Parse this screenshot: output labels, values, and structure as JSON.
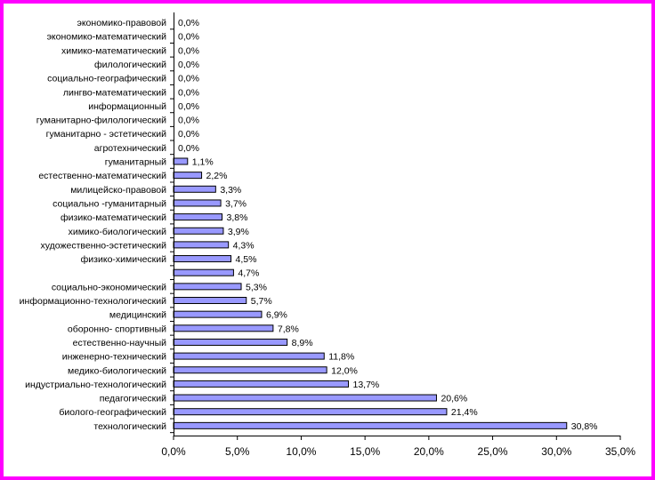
{
  "chart_data": {
    "type": "bar",
    "orientation": "horizontal",
    "bar_color": "#9999ff",
    "bar_edge_color": "#000000",
    "frame_color": "#ff00ff",
    "grid": false,
    "legend": "none",
    "xlim": [
      0,
      35
    ],
    "x_ticks": [
      "0,0%",
      "5,0%",
      "10,0%",
      "15,0%",
      "20,0%",
      "25,0%",
      "30,0%",
      "35,0%"
    ],
    "categories": [
      "экономико-правовой",
      "экономико-математический",
      "химико-математический",
      "филологический",
      "социально-географический",
      "лингво-математический",
      "информационный",
      "гуманитарно-филологический",
      "гуманитарно - эстетический",
      "агротехнический",
      "гуманитарный",
      "естественно-математический",
      "милицейско-правовой",
      "социально -гуманитарный",
      "физико-математический",
      "химико-биологический",
      "художественно-эстетический",
      "физико-химический",
      "",
      "социально-экономический",
      "информационно-технологический",
      "медицинский",
      "оборонно- спортивный",
      "естественно-научный",
      "инженерно-технический",
      "медико-биологический",
      "индустриально-технологический",
      "педагогический",
      "биолого-географический",
      "технологический"
    ],
    "values": [
      0,
      0,
      0,
      0,
      0,
      0,
      0,
      0,
      0,
      0,
      1.1,
      2.2,
      3.3,
      3.7,
      3.8,
      3.9,
      4.3,
      4.5,
      4.7,
      5.3,
      5.7,
      6.9,
      7.8,
      8.9,
      11.8,
      12.0,
      13.7,
      20.6,
      21.4,
      30.8
    ],
    "data_labels": [
      "0,0%",
      "0,0%",
      "0,0%",
      "0,0%",
      "0,0%",
      "0,0%",
      "0,0%",
      "0,0%",
      "0,0%",
      "0,0%",
      "1,1%",
      "2,2%",
      "3,3%",
      "3,7%",
      "3,8%",
      "3,9%",
      "4,3%",
      "4,5%",
      "4,7%",
      "5,3%",
      "5,7%",
      "6,9%",
      "7,8%",
      "8,9%",
      "11,8%",
      "12,0%",
      "13,7%",
      "20,6%",
      "21,4%",
      "30,8%"
    ]
  }
}
